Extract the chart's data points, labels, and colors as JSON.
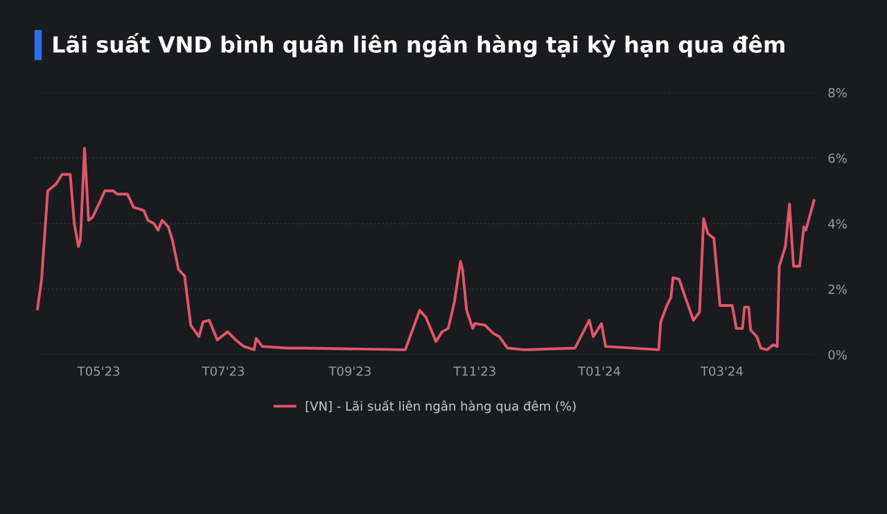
{
  "chart_data": {
    "type": "line",
    "title": "Lãi suất VND bình quân liên ngân hàng tại kỳ hạn qua đêm",
    "x": [
      "2023-04-01",
      "2023-04-03",
      "2023-04-06",
      "2023-04-10",
      "2023-04-13",
      "2023-04-17",
      "2023-04-19",
      "2023-04-21",
      "2023-04-22",
      "2023-04-24",
      "2023-04-26",
      "2023-04-28",
      "2023-05-04",
      "2023-05-08",
      "2023-05-10",
      "2023-05-15",
      "2023-05-18",
      "2023-05-23",
      "2023-05-25",
      "2023-05-28",
      "2023-05-30",
      "2023-06-01",
      "2023-06-04",
      "2023-06-06",
      "2023-06-09",
      "2023-06-12",
      "2023-06-15",
      "2023-06-19",
      "2023-06-21",
      "2023-06-24",
      "2023-06-28",
      "2023-07-03",
      "2023-07-07",
      "2023-07-11",
      "2023-07-16",
      "2023-07-17",
      "2023-07-20",
      "2023-08-01",
      "2023-08-09",
      "2023-09-28",
      "2023-10-05",
      "2023-10-08",
      "2023-10-13",
      "2023-10-16",
      "2023-10-19",
      "2023-10-22",
      "2023-10-25",
      "2023-10-26",
      "2023-10-28",
      "2023-10-31",
      "2023-11-01",
      "2023-11-06",
      "2023-11-10",
      "2023-11-13",
      "2023-11-17",
      "2023-11-25",
      "2023-12-20",
      "2023-12-27",
      "2023-12-29",
      "2024-01-02",
      "2024-01-04",
      "2024-01-30",
      "2024-01-31",
      "2024-02-03",
      "2024-02-05",
      "2024-02-06",
      "2024-02-09",
      "2024-02-12",
      "2024-02-16",
      "2024-02-19",
      "2024-02-21",
      "2024-02-23",
      "2024-02-26",
      "2024-02-29",
      "2024-03-06",
      "2024-03-08",
      "2024-03-11",
      "2024-03-12",
      "2024-03-14",
      "2024-03-15",
      "2024-03-18",
      "2024-03-20",
      "2024-03-23",
      "2024-03-26",
      "2024-03-28",
      "2024-03-29",
      "2024-04-01",
      "2024-04-03",
      "2024-04-05",
      "2024-04-08",
      "2024-04-10",
      "2024-04-11",
      "2024-04-15"
    ],
    "series": [
      {
        "name": "[VN] - Lãi suất liên ngân hàng qua đêm (%)",
        "color": "#e0566b",
        "values": [
          1.4,
          2.3,
          5.0,
          5.2,
          5.5,
          5.5,
          4.0,
          3.3,
          3.5,
          6.3,
          4.1,
          4.2,
          5.0,
          5.0,
          4.9,
          4.9,
          4.5,
          4.4,
          4.1,
          4.0,
          3.8,
          4.1,
          3.9,
          3.5,
          2.6,
          2.4,
          0.9,
          0.55,
          1.0,
          1.05,
          0.45,
          0.7,
          0.45,
          0.25,
          0.15,
          0.5,
          0.25,
          0.2,
          0.2,
          0.15,
          1.35,
          1.15,
          0.4,
          0.7,
          0.8,
          1.6,
          2.85,
          2.6,
          1.35,
          0.8,
          0.95,
          0.9,
          0.65,
          0.55,
          0.2,
          0.15,
          0.2,
          1.05,
          0.55,
          0.95,
          0.25,
          0.15,
          1.0,
          1.5,
          1.75,
          2.35,
          2.3,
          1.75,
          1.05,
          1.3,
          4.15,
          3.7,
          3.55,
          1.5,
          1.5,
          0.8,
          0.8,
          1.45,
          1.45,
          0.75,
          0.55,
          0.2,
          0.15,
          0.3,
          0.25,
          2.7,
          3.3,
          4.6,
          2.7,
          2.7,
          3.9,
          3.8,
          4.7
        ]
      }
    ],
    "xlim": [
      "2023-03-31",
      "2024-04-16"
    ],
    "xticks": [
      {
        "value": "2023-05-01",
        "label": "T05'23"
      },
      {
        "value": "2023-07-01",
        "label": "T07'23"
      },
      {
        "value": "2023-09-01",
        "label": "T09'23"
      },
      {
        "value": "2023-11-01",
        "label": "T11'23"
      },
      {
        "value": "2024-01-01",
        "label": "T01'24"
      },
      {
        "value": "2024-03-01",
        "label": "T03'24"
      }
    ],
    "ylim": [
      0,
      8
    ],
    "yticks": [
      {
        "value": 0,
        "label": "0%"
      },
      {
        "value": 2,
        "label": "2%"
      },
      {
        "value": 4,
        "label": "4%"
      },
      {
        "value": 6,
        "label": "6%"
      },
      {
        "value": 8,
        "label": "8%"
      }
    ],
    "grid": "y",
    "legend": "bottom",
    "line_style": "solid",
    "marker": "none"
  }
}
